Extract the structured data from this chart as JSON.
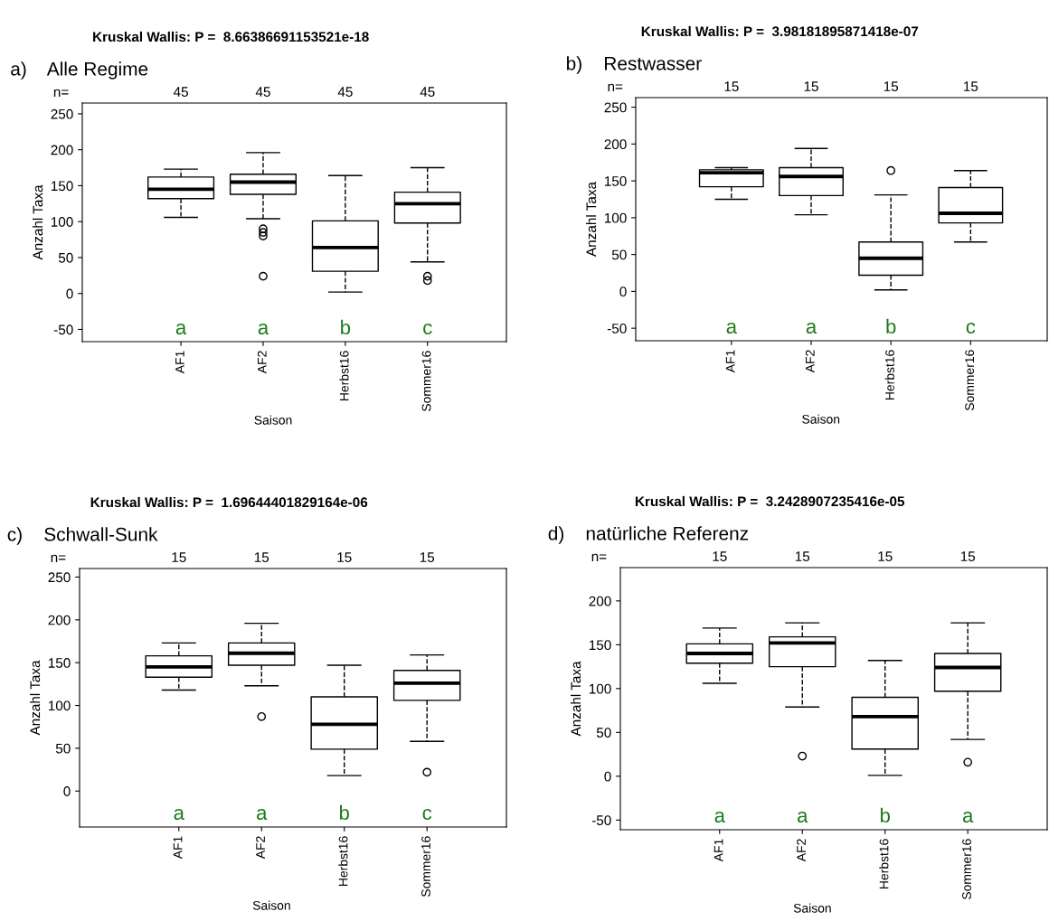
{
  "chart_data": [
    {
      "type": "box",
      "title": "Kruskal Wallis: P =  8.66386691153521e-18",
      "subtitle": "a)    Alle Regime",
      "xlabel": "Saison",
      "ylabel": "Anzahl Taxa",
      "categories": [
        "AF1",
        "AF2",
        "Herbst16",
        "Sommer16"
      ],
      "boxes": [
        {
          "low": 106,
          "q1": 132,
          "median": 145,
          "q3": 162,
          "high": 173
        },
        {
          "low": 104,
          "q1": 138,
          "median": 155,
          "q3": 166,
          "high": 196,
          "outliers": [
            24,
            80,
            85,
            90
          ]
        },
        {
          "low": 2,
          "q1": 31,
          "median": 64,
          "q3": 101,
          "high": 164
        },
        {
          "low": 44,
          "q1": 98,
          "median": 125,
          "q3": 141,
          "high": 175,
          "outliers": [
            18,
            24
          ]
        }
      ],
      "ylim": [
        -67,
        265
      ],
      "yticks": [
        -50,
        0,
        50,
        100,
        150,
        200,
        250
      ],
      "annotations": [
        "n=",
        "45",
        "45",
        "45",
        "45",
        "a",
        "a",
        "b",
        "c"
      ]
    },
    {
      "type": "box",
      "title": "Kruskal Wallis: P =  3.98181895871418e-07",
      "subtitle": "b)    Restwasser",
      "xlabel": "Saison",
      "ylabel": "Anzahl Taxa",
      "categories": [
        "AF1",
        "AF2",
        "Herbst16",
        "Sommer16"
      ],
      "boxes": [
        {
          "low": 125,
          "q1": 142,
          "median": 161,
          "q3": 165,
          "high": 168
        },
        {
          "low": 104,
          "q1": 130,
          "median": 156,
          "q3": 168,
          "high": 194
        },
        {
          "low": 2,
          "q1": 22,
          "median": 45,
          "q3": 67,
          "high": 131,
          "outliers": [
            164
          ]
        },
        {
          "low": 67,
          "q1": 93,
          "median": 106,
          "q3": 141,
          "high": 164
        }
      ],
      "ylim": [
        -67,
        263
      ],
      "yticks": [
        -50,
        0,
        50,
        100,
        150,
        200,
        250
      ],
      "annotations": [
        "n=",
        "15",
        "15",
        "15",
        "15",
        "a",
        "a",
        "b",
        "c"
      ]
    },
    {
      "type": "box",
      "title": "Kruskal Wallis: P =  1.69644401829164e-06",
      "subtitle": "c)    Schwall-Sunk",
      "xlabel": "Saison",
      "ylabel": "Anzahl Taxa",
      "categories": [
        "AF1",
        "AF2",
        "Herbst16",
        "Sommer16"
      ],
      "boxes": [
        {
          "low": 118,
          "q1": 133,
          "median": 145,
          "q3": 158,
          "high": 173
        },
        {
          "low": 123,
          "q1": 147,
          "median": 161,
          "q3": 173,
          "high": 196,
          "outliers": [
            87
          ]
        },
        {
          "low": 18,
          "q1": 49,
          "median": 78,
          "q3": 110,
          "high": 147
        },
        {
          "low": 58,
          "q1": 106,
          "median": 126,
          "q3": 141,
          "high": 159,
          "outliers": [
            22
          ]
        }
      ],
      "ylim": [
        -42,
        260
      ],
      "yticks": [
        0,
        50,
        100,
        150,
        200,
        250
      ],
      "annotations": [
        "n=",
        "15",
        "15",
        "15",
        "15",
        "a",
        "a",
        "b",
        "c"
      ]
    },
    {
      "type": "box",
      "title": "Kruskal Wallis: P =  3.2428907235416e-05",
      "subtitle": "d)    natürliche Referenz",
      "xlabel": "Saison",
      "ylabel": "Anzahl Taxa",
      "categories": [
        "AF1",
        "AF2",
        "Herbst16",
        "Sommer16"
      ],
      "boxes": [
        {
          "low": 106,
          "q1": 129,
          "median": 140,
          "q3": 151,
          "high": 169
        },
        {
          "low": 79,
          "q1": 125,
          "median": 152,
          "q3": 159,
          "high": 175,
          "outliers": [
            23
          ]
        },
        {
          "low": 1,
          "q1": 31,
          "median": 68,
          "q3": 90,
          "high": 132
        },
        {
          "low": 42,
          "q1": 97,
          "median": 124,
          "q3": 140,
          "high": 175,
          "outliers": [
            16
          ]
        }
      ],
      "ylim": [
        -61,
        238
      ],
      "yticks": [
        -50,
        0,
        50,
        100,
        150,
        200
      ],
      "annotations": [
        "n=",
        "15",
        "15",
        "15",
        "15",
        "a",
        "a",
        "b",
        "a"
      ]
    }
  ]
}
